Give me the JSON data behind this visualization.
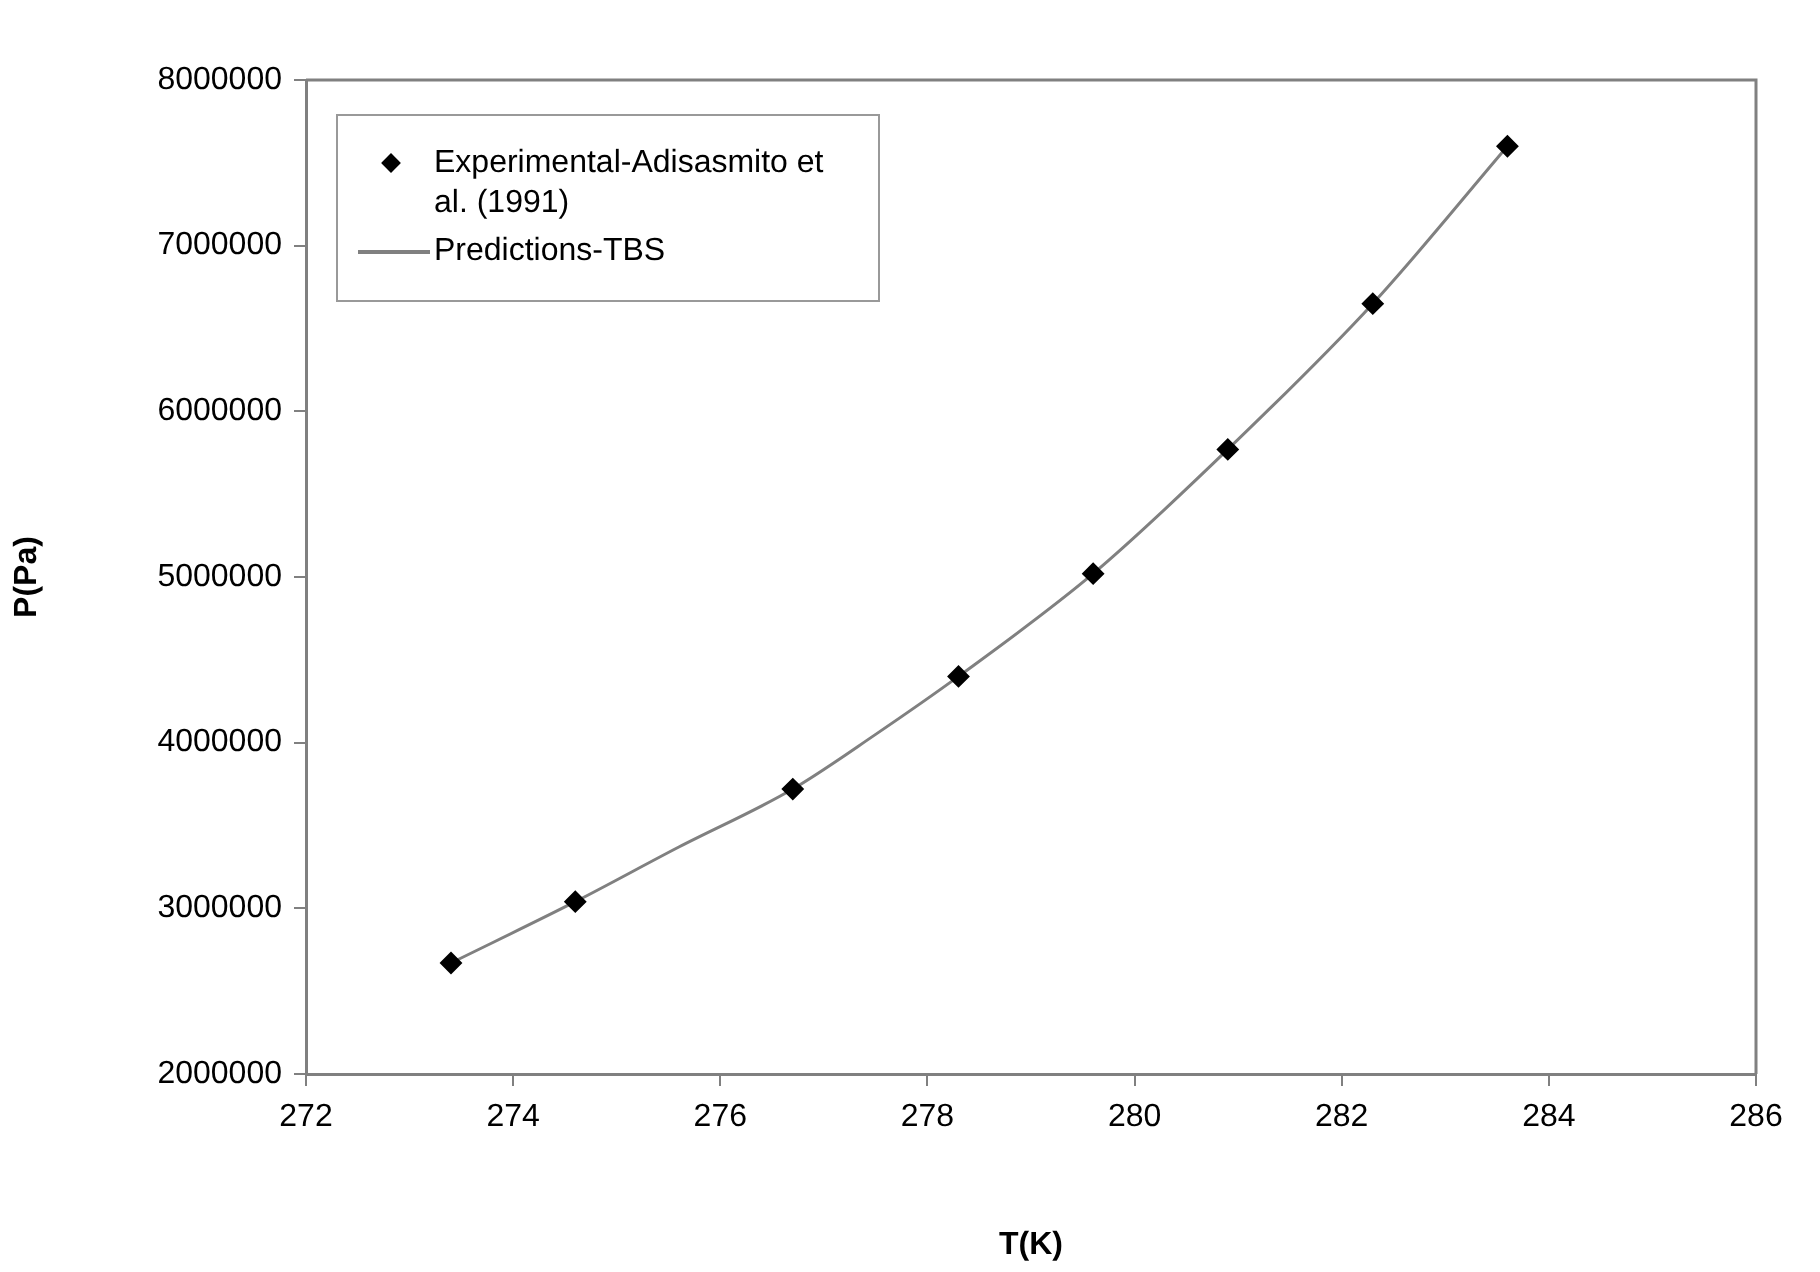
{
  "chart_data": {
    "type": "scatter",
    "xlabel": "T(K)",
    "ylabel": "P(Pa)",
    "xlim": [
      272,
      286
    ],
    "xticks": [
      272,
      274,
      276,
      278,
      280,
      282,
      284,
      286
    ],
    "ylim": [
      2000000,
      8000000
    ],
    "yticks": [
      2000000,
      3000000,
      4000000,
      5000000,
      6000000,
      7000000,
      8000000
    ],
    "grid": false,
    "legend": "top left",
    "series": [
      {
        "name": "Experimental-Adisasmito et al. (1991)",
        "marker": "diamond",
        "color": "#000000",
        "x": [
          273.4,
          274.6,
          276.7,
          278.3,
          279.6,
          280.9,
          282.3,
          283.6
        ],
        "values": [
          2670000,
          3040000,
          3720000,
          4400000,
          5020000,
          5770000,
          6650000,
          7600000
        ]
      },
      {
        "name": "Predictions-TBS",
        "type": "line",
        "marker": "none",
        "color": "#808080",
        "x": [
          273.4,
          274.6,
          275.6,
          276.7,
          277.5,
          278.3,
          279.6,
          280.9,
          282.3,
          283.6
        ],
        "values": [
          2670000,
          3040000,
          3370000,
          3720000,
          4050000,
          4400000,
          5020000,
          5770000,
          6650000,
          7600000
        ]
      }
    ]
  }
}
